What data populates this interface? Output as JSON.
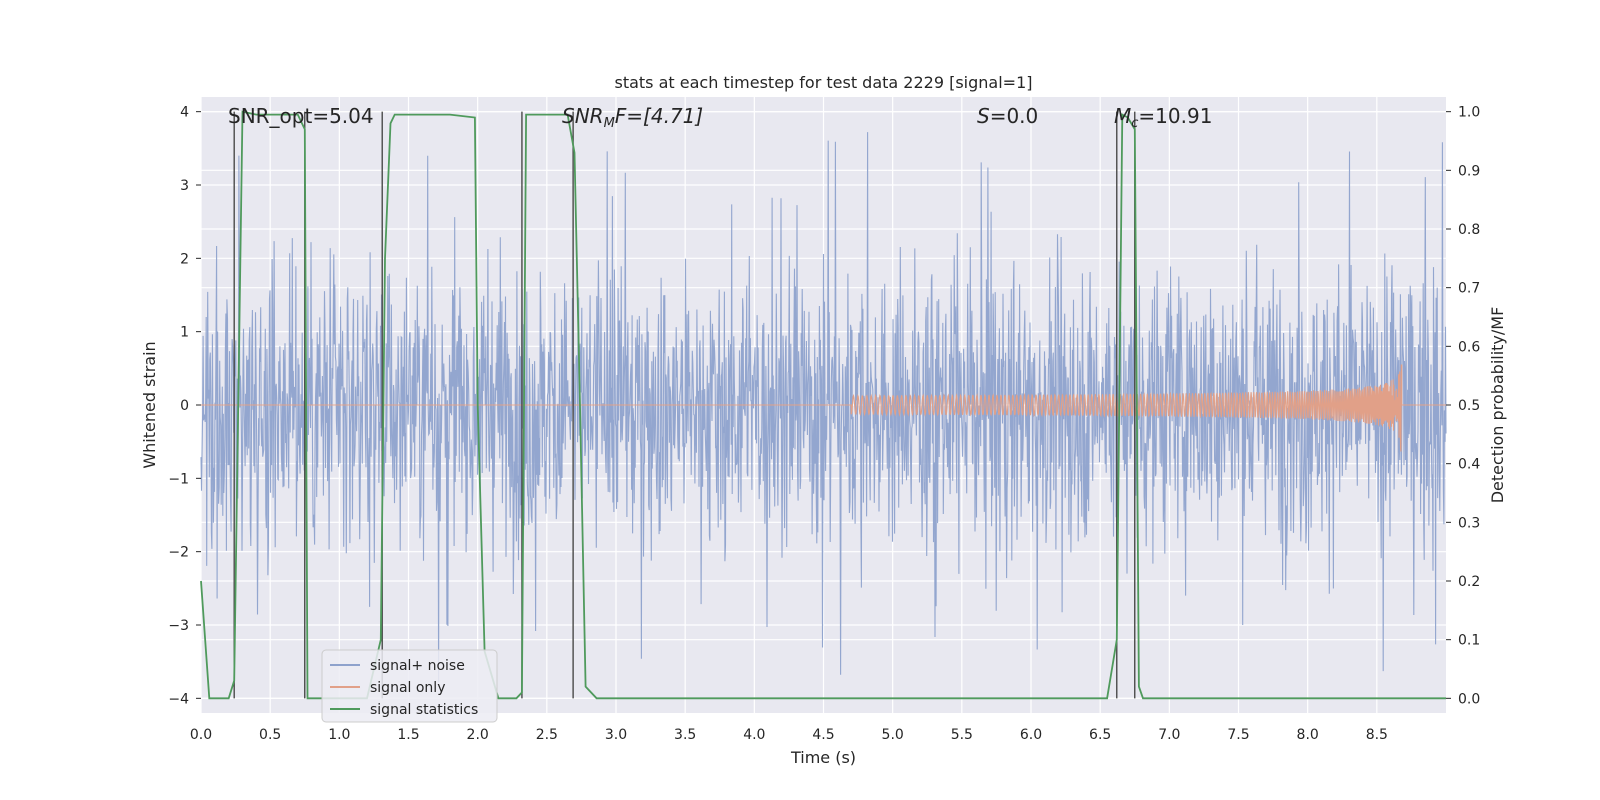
{
  "chart_data": {
    "type": "line",
    "title": "stats at each timestep for test data 2229 [signal=1]",
    "xlabel": "Time (s)",
    "ylabel_left": "Whitened strain",
    "ylabel_right": "Detection probability/MF",
    "xlim": [
      0.0,
      9.0
    ],
    "ylim_left": [
      -4.2,
      4.2
    ],
    "ylim_right": [
      -0.025,
      1.025
    ],
    "xticks": [
      0.0,
      0.5,
      1.0,
      1.5,
      2.0,
      2.5,
      3.0,
      3.5,
      4.0,
      4.5,
      5.0,
      5.5,
      6.0,
      6.5,
      7.0,
      7.5,
      8.0,
      8.5
    ],
    "xtick_labels": [
      "0.0",
      "0.5",
      "1.0",
      "1.5",
      "2.0",
      "2.5",
      "3.0",
      "3.5",
      "4.0",
      "4.5",
      "5.0",
      "5.5",
      "6.0",
      "6.5",
      "7.0",
      "7.5",
      "8.0",
      "8.5"
    ],
    "yticks_left": [
      -4,
      -3,
      -2,
      -1,
      0,
      1,
      2,
      3,
      4
    ],
    "ytick_labels_left": [
      "−4",
      "−3",
      "−2",
      "−1",
      "0",
      "1",
      "2",
      "3",
      "4"
    ],
    "yticks_right": [
      0.0,
      0.1,
      0.2,
      0.3,
      0.4,
      0.5,
      0.6,
      0.7,
      0.8,
      0.9,
      1.0
    ],
    "ytick_labels_right": [
      "0.0",
      "0.1",
      "0.2",
      "0.3",
      "0.4",
      "0.5",
      "0.6",
      "0.7",
      "0.8",
      "0.9",
      "1.0"
    ],
    "grid": true,
    "legend_position": "lower-left",
    "annotations": {
      "snr_opt": "SNR_opt=5.04",
      "snr_mf_label": "SNR",
      "snr_mf_sub": "M",
      "snr_mf_rest": "F=[4.71]",
      "s_label": "S",
      "s_rest": "=0.0",
      "mc_label": "M",
      "mc_sub": "c",
      "mc_rest": "=10.91"
    },
    "series": [
      {
        "name": "signal+ noise",
        "color": "#8ea2cc",
        "kind": "noise",
        "amplitude_typical": 1.5,
        "amplitude_peak": 3.8
      },
      {
        "name": "signal only",
        "color": "#e1a088",
        "kind": "chirp",
        "t_start": 4.7,
        "t_merger": 8.68,
        "peak_amplitude": 0.75
      },
      {
        "name": "signal statistics",
        "color": "#4f9a5c",
        "kind": "step",
        "x": [
          0.0,
          0.06,
          0.2,
          0.24,
          0.3,
          0.4,
          0.6,
          0.7,
          0.75,
          0.77,
          0.85,
          1.2,
          1.3,
          1.33,
          1.37,
          1.4,
          1.5,
          1.8,
          1.98,
          2.0,
          2.05,
          2.15,
          2.28,
          2.32,
          2.35,
          2.45,
          2.65,
          2.7,
          2.74,
          2.78,
          2.86,
          6.55,
          6.62,
          6.66,
          6.7,
          6.75,
          6.78,
          6.81,
          9.0
        ],
        "y": [
          0.2,
          0.0,
          0.0,
          0.03,
          1.0,
          0.995,
          0.995,
          0.995,
          0.97,
          0.0,
          0.0,
          0.0,
          0.1,
          0.75,
          0.98,
          0.995,
          0.995,
          0.995,
          0.99,
          0.5,
          0.08,
          0.0,
          0.0,
          0.01,
          0.995,
          0.995,
          0.995,
          0.93,
          0.5,
          0.02,
          0.0,
          0.0,
          0.1,
          0.995,
          0.99,
          0.97,
          0.02,
          0.0,
          0.0
        ]
      }
    ],
    "vertical_markers": [
      0.24,
      0.75,
      1.31,
      2.32,
      2.69,
      6.62,
      6.75
    ]
  }
}
